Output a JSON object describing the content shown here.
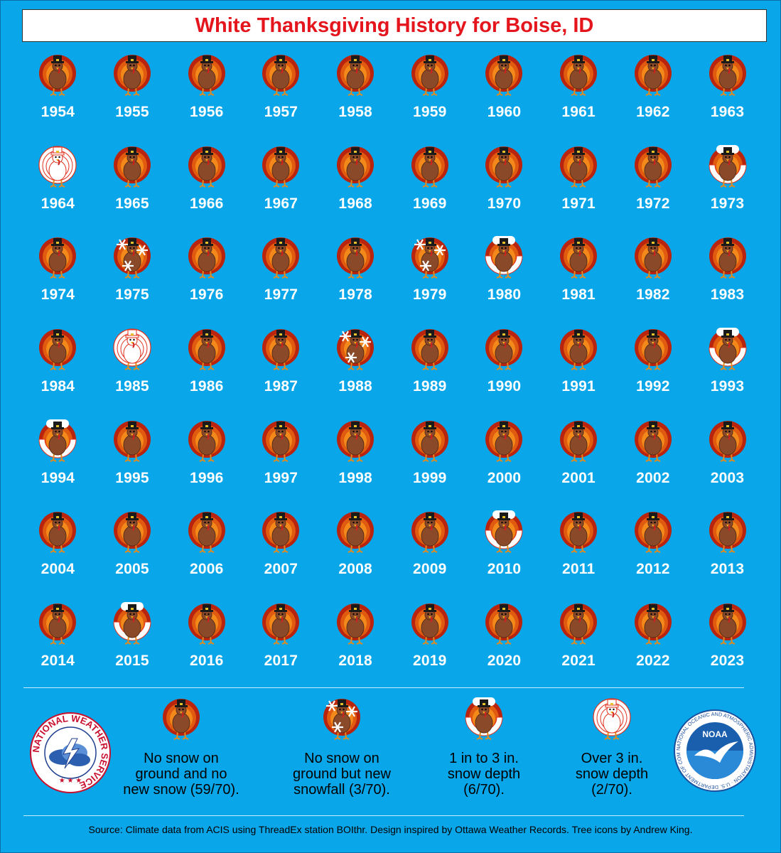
{
  "title": "White Thanksgiving History for Boise, ID",
  "colors": {
    "background": "#0aa6ea",
    "title_text": "#e4151c",
    "year_text": "#ffffff"
  },
  "categories": {
    "none": "turkey-brown-icon",
    "snowfall": "turkey-snowflakes-icon",
    "light": "turkey-partly-white-icon",
    "heavy": "turkey-white-icon"
  },
  "years": [
    {
      "year": "1954",
      "status": "none"
    },
    {
      "year": "1955",
      "status": "none"
    },
    {
      "year": "1956",
      "status": "none"
    },
    {
      "year": "1957",
      "status": "none"
    },
    {
      "year": "1958",
      "status": "none"
    },
    {
      "year": "1959",
      "status": "none"
    },
    {
      "year": "1960",
      "status": "none"
    },
    {
      "year": "1961",
      "status": "none"
    },
    {
      "year": "1962",
      "status": "none"
    },
    {
      "year": "1963",
      "status": "none"
    },
    {
      "year": "1964",
      "status": "heavy"
    },
    {
      "year": "1965",
      "status": "none"
    },
    {
      "year": "1966",
      "status": "none"
    },
    {
      "year": "1967",
      "status": "none"
    },
    {
      "year": "1968",
      "status": "none"
    },
    {
      "year": "1969",
      "status": "none"
    },
    {
      "year": "1970",
      "status": "none"
    },
    {
      "year": "1971",
      "status": "none"
    },
    {
      "year": "1972",
      "status": "none"
    },
    {
      "year": "1973",
      "status": "light"
    },
    {
      "year": "1974",
      "status": "none"
    },
    {
      "year": "1975",
      "status": "snowfall"
    },
    {
      "year": "1976",
      "status": "none"
    },
    {
      "year": "1977",
      "status": "none"
    },
    {
      "year": "1978",
      "status": "none"
    },
    {
      "year": "1979",
      "status": "snowfall"
    },
    {
      "year": "1980",
      "status": "light"
    },
    {
      "year": "1981",
      "status": "none"
    },
    {
      "year": "1982",
      "status": "none"
    },
    {
      "year": "1983",
      "status": "none"
    },
    {
      "year": "1984",
      "status": "none"
    },
    {
      "year": "1985",
      "status": "heavy"
    },
    {
      "year": "1986",
      "status": "none"
    },
    {
      "year": "1987",
      "status": "none"
    },
    {
      "year": "1988",
      "status": "snowfall"
    },
    {
      "year": "1989",
      "status": "none"
    },
    {
      "year": "1990",
      "status": "none"
    },
    {
      "year": "1991",
      "status": "none"
    },
    {
      "year": "1992",
      "status": "none"
    },
    {
      "year": "1993",
      "status": "light"
    },
    {
      "year": "1994",
      "status": "light"
    },
    {
      "year": "1995",
      "status": "none"
    },
    {
      "year": "1996",
      "status": "none"
    },
    {
      "year": "1997",
      "status": "none"
    },
    {
      "year": "1998",
      "status": "none"
    },
    {
      "year": "1999",
      "status": "none"
    },
    {
      "year": "2000",
      "status": "none"
    },
    {
      "year": "2001",
      "status": "none"
    },
    {
      "year": "2002",
      "status": "none"
    },
    {
      "year": "2003",
      "status": "none"
    },
    {
      "year": "2004",
      "status": "none"
    },
    {
      "year": "2005",
      "status": "none"
    },
    {
      "year": "2006",
      "status": "none"
    },
    {
      "year": "2007",
      "status": "none"
    },
    {
      "year": "2008",
      "status": "none"
    },
    {
      "year": "2009",
      "status": "none"
    },
    {
      "year": "2010",
      "status": "light"
    },
    {
      "year": "2011",
      "status": "none"
    },
    {
      "year": "2012",
      "status": "none"
    },
    {
      "year": "2013",
      "status": "none"
    },
    {
      "year": "2014",
      "status": "none"
    },
    {
      "year": "2015",
      "status": "light"
    },
    {
      "year": "2016",
      "status": "none"
    },
    {
      "year": "2017",
      "status": "none"
    },
    {
      "year": "2018",
      "status": "none"
    },
    {
      "year": "2019",
      "status": "none"
    },
    {
      "year": "2020",
      "status": "none"
    },
    {
      "year": "2021",
      "status": "none"
    },
    {
      "year": "2022",
      "status": "none"
    },
    {
      "year": "2023",
      "status": "none"
    }
  ],
  "legend": [
    {
      "status": "none",
      "text": "No snow on\nground and no\nnew snow (59/70)."
    },
    {
      "status": "snowfall",
      "text": "No snow on\nground but new\nsnowfall (3/70)."
    },
    {
      "status": "light",
      "text": "1 in to 3 in.\nsnow depth\n(6/70)."
    },
    {
      "status": "heavy",
      "text": "Over 3 in.\nsnow depth\n(2/70)."
    }
  ],
  "logos": {
    "nws": {
      "icon": "nws-logo-icon",
      "text": "NATIONAL WEATHER SERVICE"
    },
    "noaa": {
      "icon": "noaa-logo-icon",
      "text": "NOAA",
      "ring_text": "NATIONAL OCEANIC AND ATMOSPHERIC ADMINISTRATION · U.S. DEPARTMENT OF COMMERCE"
    }
  },
  "source": "Source: Climate data from ACIS using ThreadEx station BOIthr. Design inspired by Ottawa Weather Records. Tree icons by Andrew King."
}
